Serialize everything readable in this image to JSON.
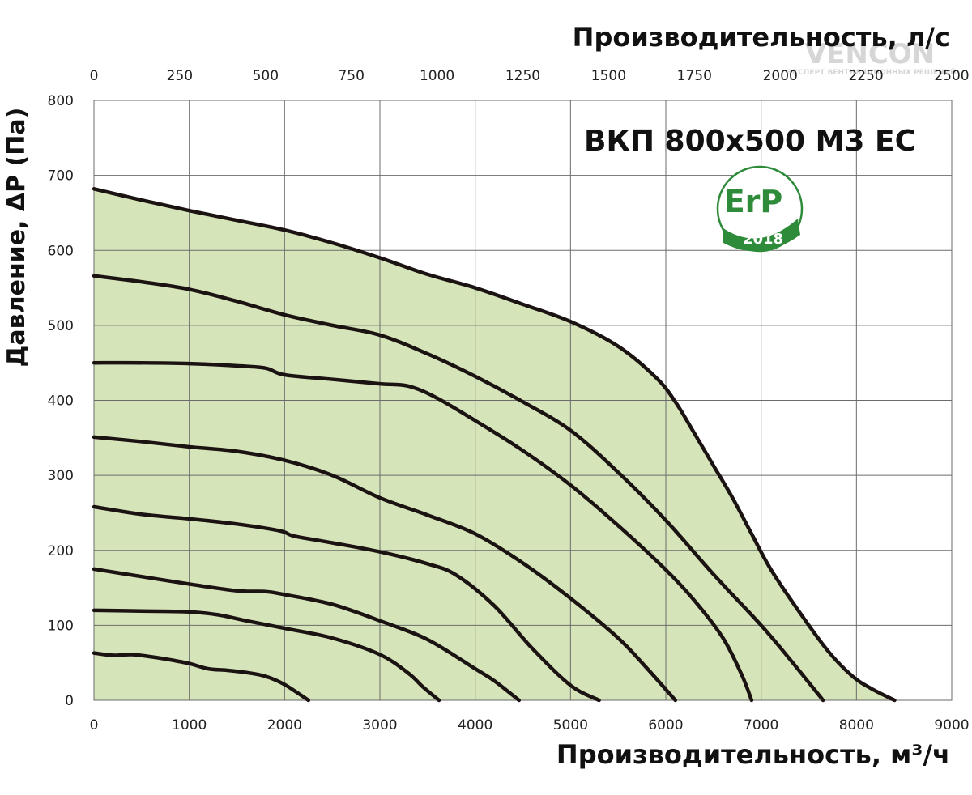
{
  "chart_data": {
    "type": "area",
    "title": "ВКП 800х500 М3 ЕС",
    "xlabel": "Производительность, м³/ч",
    "x2label": "Производительность, л/с",
    "ylabel": "Давление, ΔР (Па)",
    "xlim": [
      0,
      9000
    ],
    "ylim": [
      0,
      800
    ],
    "x2lim": [
      0,
      2500
    ],
    "x_ticks": [
      0,
      1000,
      2000,
      3000,
      4000,
      5000,
      6000,
      7000,
      8000,
      9000
    ],
    "x2_ticks": [
      0,
      250,
      500,
      750,
      1000,
      1250,
      1500,
      1750,
      2000,
      2250,
      2500
    ],
    "y_ticks": [
      0,
      100,
      200,
      300,
      400,
      500,
      600,
      700,
      800
    ],
    "grid": true,
    "fill_color": "#d6e4b9",
    "line_color": "#1b1212",
    "series": [
      {
        "x": [
          0,
          500,
          1000,
          1500,
          2000,
          2500,
          3000,
          3500,
          4000,
          4500,
          5000,
          5500,
          5900,
          6100,
          6300,
          6500,
          6700,
          6900,
          7100,
          7400,
          7700,
          7950,
          8150,
          8400
        ],
        "y": [
          682,
          667,
          653,
          640,
          627,
          610,
          590,
          568,
          550,
          528,
          505,
          472,
          430,
          398,
          356,
          313,
          270,
          222,
          175,
          118,
          66,
          33,
          16,
          0
        ]
      },
      {
        "x": [
          0,
          500,
          1000,
          1500,
          2000,
          2500,
          3000,
          3500,
          4000,
          4500,
          5000,
          5500,
          6000,
          6500,
          7000,
          7300,
          7650
        ],
        "y": [
          566,
          558,
          548,
          532,
          514,
          500,
          487,
          462,
          432,
          398,
          360,
          304,
          240,
          168,
          100,
          55,
          0
        ]
      },
      {
        "x": [
          0,
          500,
          1000,
          1500,
          1800,
          2000,
          2500,
          3000,
          3300,
          3600,
          4000,
          4500,
          5000,
          5500,
          6000,
          6300,
          6600,
          6800,
          6900
        ],
        "y": [
          450,
          450,
          449,
          446,
          443,
          434,
          428,
          422,
          419,
          403,
          373,
          333,
          287,
          233,
          174,
          133,
          83,
          33,
          0
        ]
      },
      {
        "x": [
          0,
          500,
          1000,
          1500,
          2000,
          2500,
          3000,
          3500,
          4000,
          4500,
          5000,
          5500,
          5800,
          6100
        ],
        "y": [
          351,
          345,
          338,
          332,
          320,
          300,
          270,
          247,
          222,
          183,
          136,
          83,
          43,
          0
        ]
      },
      {
        "x": [
          0,
          500,
          1000,
          1500,
          1950,
          2100,
          2500,
          3000,
          3500,
          3800,
          4200,
          4600,
          5000,
          5300
        ],
        "y": [
          258,
          248,
          242,
          235,
          226,
          219,
          210,
          198,
          182,
          167,
          126,
          69,
          20,
          0
        ]
      },
      {
        "x": [
          0,
          500,
          1000,
          1500,
          1800,
          2000,
          2500,
          3000,
          3500,
          4000,
          4200,
          4460
        ],
        "y": [
          175,
          165,
          155,
          146,
          145,
          141,
          128,
          106,
          81,
          42,
          26,
          0
        ]
      },
      {
        "x": [
          0,
          500,
          1000,
          1300,
          1600,
          2000,
          2500,
          3000,
          3300,
          3450,
          3620
        ],
        "y": [
          120,
          119,
          118,
          114,
          106,
          96,
          83,
          61,
          36,
          18,
          0
        ]
      },
      {
        "x": [
          0,
          200,
          400,
          600,
          800,
          1000,
          1200,
          1400,
          1600,
          1800,
          2000,
          2250
        ],
        "y": [
          63,
          60,
          61,
          58,
          54,
          49,
          42,
          40,
          37,
          32,
          21,
          0
        ]
      }
    ]
  },
  "badge": {
    "text": "ErP",
    "year": "2018",
    "color": "#2e8b3a"
  },
  "brand": {
    "name": "VENCON",
    "tagline": "ЭКСПЕРТ ВЕНТИЛЯЦИОННЫХ РЕШЕНИЙ"
  }
}
